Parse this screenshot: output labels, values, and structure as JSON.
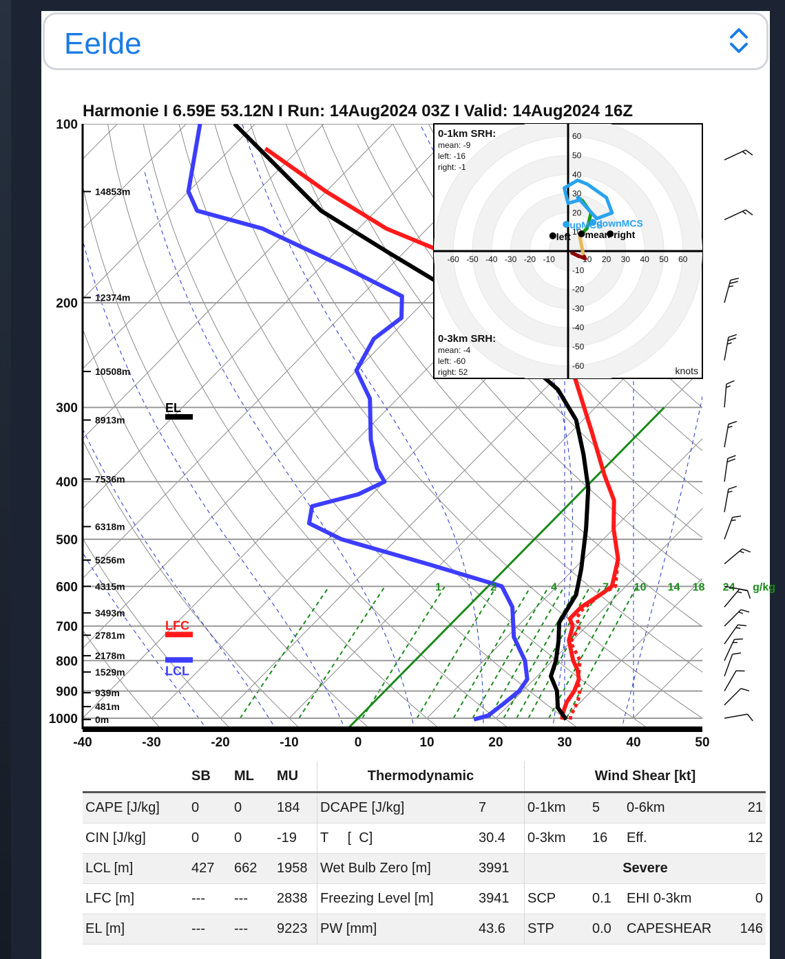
{
  "location": {
    "selected": "Eelde"
  },
  "colors": {
    "accent": "#1a7be6",
    "temperature": "#ff1a1a",
    "dewpoint": "#3d3dff",
    "parcel": "#000000",
    "wetbulb_zero": "#1a8a1a",
    "mixing_ratio": "#1a8a1a",
    "dry_adiabat": "#777777",
    "moist_adiabat": "#2233cc"
  },
  "chart_data": {
    "type": "skew-t",
    "title": "Harmonie I 6.59E 53.12N I Run: 14Aug2024 03Z I Valid: 14Aug2024 16Z",
    "x_ticks": [
      -40,
      -30,
      -20,
      -10,
      0,
      10,
      20,
      30,
      40,
      50
    ],
    "p_ticks": [
      100,
      200,
      300,
      400,
      500,
      600,
      700,
      800,
      900,
      1000
    ],
    "xlim": [
      -40,
      50
    ],
    "plim": [
      1000,
      100
    ],
    "y_scale": "log-pressure",
    "height_labels": [
      {
        "p": 130,
        "label": "14853m"
      },
      {
        "p": 196,
        "label": "12374m"
      },
      {
        "p": 261,
        "label": "10508m"
      },
      {
        "p": 315,
        "label": "8913m"
      },
      {
        "p": 396,
        "label": "7536m"
      },
      {
        "p": 476,
        "label": "6318m"
      },
      {
        "p": 542,
        "label": "5256m"
      },
      {
        "p": 600,
        "label": "4315m"
      },
      {
        "p": 665,
        "label": "3493m"
      },
      {
        "p": 725,
        "label": "2781m"
      },
      {
        "p": 785,
        "label": "2178m"
      },
      {
        "p": 836,
        "label": "1529m"
      },
      {
        "p": 906,
        "label": "939m"
      },
      {
        "p": 956,
        "label": "481m"
      },
      {
        "p": 1005,
        "label": "0m"
      }
    ],
    "mixing_ratio_labels": [
      {
        "value": "1",
        "t": -6
      },
      {
        "value": "2",
        "t": 2
      },
      {
        "value": "4",
        "t": 10.8
      },
      {
        "value": "7",
        "t": 18.3
      },
      {
        "value": "10",
        "t": 23.3
      },
      {
        "value": "14",
        "t": 28.2
      },
      {
        "value": "18",
        "t": 31.8
      },
      {
        "value": "24",
        "t": 36.2
      },
      {
        "value": "g/kg",
        "t": 41.3
      }
    ],
    "levels": [
      {
        "name": "EL",
        "p": 312,
        "t": -26
      },
      {
        "name": "LFC",
        "p": 725,
        "t": -26
      },
      {
        "name": "LCL",
        "p": 800,
        "t": -26
      }
    ],
    "series": [
      {
        "name": "temperature",
        "points": [
          [
            29.8,
            1005
          ],
          [
            29,
            980
          ],
          [
            28,
            940
          ],
          [
            27.5,
            900
          ],
          [
            26.5,
            860
          ],
          [
            25,
            830
          ],
          [
            23,
            800
          ],
          [
            19.5,
            740
          ],
          [
            18,
            700
          ],
          [
            16.5,
            680
          ],
          [
            16.5,
            650
          ],
          [
            17.5,
            620
          ],
          [
            18,
            600
          ],
          [
            15,
            540
          ],
          [
            10,
            480
          ],
          [
            6,
            430
          ],
          [
            1,
            390
          ],
          [
            -7,
            330
          ],
          [
            -15,
            280
          ],
          [
            -22.5,
            240
          ],
          [
            -34,
            210
          ],
          [
            -39,
            200
          ],
          [
            -50,
            170
          ],
          [
            -66,
            150
          ],
          [
            -80,
            130
          ],
          [
            -95,
            110
          ]
        ]
      },
      {
        "name": "dewpoint",
        "points": [
          [
            17,
            1005
          ],
          [
            18.5,
            990
          ],
          [
            19,
            950
          ],
          [
            19.5,
            900
          ],
          [
            19,
            860
          ],
          [
            16,
            800
          ],
          [
            11,
            730
          ],
          [
            6.5,
            650
          ],
          [
            2,
            600
          ],
          [
            -12,
            550
          ],
          [
            -28,
            500
          ],
          [
            -35,
            470
          ],
          [
            -37,
            440
          ],
          [
            -32,
            420
          ],
          [
            -30,
            400
          ],
          [
            -33,
            380
          ],
          [
            -38,
            340
          ],
          [
            -44,
            290
          ],
          [
            -50,
            260
          ],
          [
            -52,
            230
          ],
          [
            -51,
            212
          ],
          [
            -54,
            195
          ],
          [
            -66,
            175
          ],
          [
            -84,
            150
          ],
          [
            -96,
            140
          ],
          [
            -100,
            130
          ],
          [
            -108,
            100
          ]
        ]
      },
      {
        "name": "parcel",
        "points": [
          [
            30.4,
            1005
          ],
          [
            27.5,
            960
          ],
          [
            25,
            900
          ],
          [
            22,
            850
          ],
          [
            20.5,
            800
          ],
          [
            18,
            740
          ],
          [
            15.5,
            690
          ],
          [
            14,
            620
          ],
          [
            11,
            560
          ],
          [
            6,
            480
          ],
          [
            0.5,
            410
          ],
          [
            -5,
            360
          ],
          [
            -11,
            315
          ],
          [
            -18,
            280
          ],
          [
            -27,
            250
          ],
          [
            -37,
            215
          ],
          [
            -48,
            190
          ],
          [
            -62,
            165
          ],
          [
            -78,
            140
          ],
          [
            -103,
            100
          ]
        ]
      },
      {
        "name": "virtual-temperature",
        "dashed": true,
        "points": [
          [
            31,
            1005
          ],
          [
            30.5,
            990
          ],
          [
            30,
            960
          ],
          [
            29.3,
            930
          ],
          [
            28.3,
            900
          ],
          [
            27.3,
            880
          ],
          [
            26,
            850
          ],
          [
            24,
            800
          ],
          [
            20,
            745
          ],
          [
            19,
            700
          ],
          [
            17.5,
            680
          ],
          [
            17,
            660
          ],
          [
            17.5,
            620
          ],
          [
            18.5,
            600
          ],
          [
            15,
            540
          ]
        ]
      }
    ],
    "wetbulb_zero_line": [
      [
        13.9,
        600
      ],
      [
        17,
        1000
      ]
    ],
    "isotherm_dashed": [
      30,
      40
    ],
    "wind_barbs": [
      {
        "p": 115,
        "dir": 245,
        "kt": 15
      },
      {
        "p": 145,
        "dir": 245,
        "kt": 15
      },
      {
        "p": 200,
        "dir": 195,
        "kt": 25
      },
      {
        "p": 250,
        "dir": 190,
        "kt": 25
      },
      {
        "p": 300,
        "dir": 185,
        "kt": 15
      },
      {
        "p": 350,
        "dir": 190,
        "kt": 15
      },
      {
        "p": 400,
        "dir": 188,
        "kt": 20
      },
      {
        "p": 450,
        "dir": 190,
        "kt": 15
      },
      {
        "p": 500,
        "dir": 200,
        "kt": 15
      },
      {
        "p": 550,
        "dir": 230,
        "kt": 15
      },
      {
        "p": 600,
        "dir": 280,
        "kt": 10
      },
      {
        "p": 650,
        "dir": 220,
        "kt": 15
      },
      {
        "p": 700,
        "dir": 225,
        "kt": 15
      },
      {
        "p": 750,
        "dir": 215,
        "kt": 15
      },
      {
        "p": 800,
        "dir": 205,
        "kt": 15
      },
      {
        "p": 850,
        "dir": 200,
        "kt": 10
      },
      {
        "p": 900,
        "dir": 210,
        "kt": 10
      },
      {
        "p": 950,
        "dir": 225,
        "kt": 10
      },
      {
        "p": 1000,
        "dir": 260,
        "kt": 10
      }
    ],
    "hodograph": {
      "unit": "knots",
      "axis_ticks": [
        -60,
        -50,
        -40,
        -30,
        -20,
        -10,
        10,
        20,
        30,
        40,
        50,
        60
      ],
      "srh_0_1km": {
        "title": "0-1km SRH:",
        "mean": "mean: -9",
        "left": "left: -16",
        "right": "right: -1"
      },
      "srh_0_3km": {
        "title": "0-3km SRH:",
        "mean": "mean: -4",
        "left": "left: -60",
        "right": "right: 52"
      },
      "trace": [
        {
          "color": "#8b0000",
          "points": [
            [
              6,
              -3
            ],
            [
              2,
              -1
            ],
            [
              9,
              -4
            ],
            [
              8,
              -2
            ]
          ]
        },
        {
          "color": "#e6b85c",
          "points": [
            [
              8,
              -2
            ],
            [
              7,
              3
            ],
            [
              6,
              8
            ]
          ]
        },
        {
          "color": "#1a9a1a",
          "points": [
            [
              6,
              8
            ],
            [
              10,
              12
            ],
            [
              12,
              20
            ],
            [
              7,
              27
            ]
          ]
        },
        {
          "color": "#29a3ee",
          "points": [
            [
              7,
              27
            ],
            [
              5,
              28
            ],
            [
              15,
              17
            ],
            [
              23,
              20
            ],
            [
              20,
              28
            ],
            [
              10,
              35
            ],
            [
              5,
              37
            ],
            [
              -2,
              33
            ],
            [
              0,
              25
            ],
            [
              7,
              27
            ]
          ]
        }
      ],
      "markers": [
        {
          "label": "left",
          "u": -8,
          "v": 8,
          "color": "#000000"
        },
        {
          "label": "mean",
          "u": 7,
          "v": 9,
          "color": "#000000"
        },
        {
          "label": "right",
          "u": 22,
          "v": 9,
          "color": "#000000"
        },
        {
          "label": "upMCS",
          "u": -1,
          "v": 14,
          "color": "#29a3ee"
        },
        {
          "label": "downMCS",
          "u": 13,
          "v": 15,
          "color": "#29a3ee"
        }
      ]
    }
  },
  "stats": {
    "headers": {
      "sb": "SB",
      "ml": "ML",
      "mu": "MU",
      "thermo": "Thermodynamic",
      "shear": "Wind Shear [kt]"
    },
    "rows": [
      {
        "label": "CAPE [J/kg]",
        "sb": "0",
        "ml": "0",
        "mu": "184",
        "tlab": "DCAPE [J/kg]",
        "tval": "7",
        "s1lab": "0-1km",
        "s1val": "5",
        "s2lab": "0-6km",
        "s2val": "21"
      },
      {
        "label": "CIN [J/kg]",
        "sb": "0",
        "ml": "0",
        "mu": "-19",
        "tlab": "T     [  C]",
        "tval": "30.4",
        "s1lab": "0-3km",
        "s1val": "16",
        "s2lab": "Eff.",
        "s2val": "12"
      },
      {
        "label": "LCL [m]",
        "sb": "427",
        "ml": "662",
        "mu": "1958",
        "tlab": "Wet Bulb Zero [m]",
        "tval": "3991",
        "severe": "Severe"
      },
      {
        "label": "LFC [m]",
        "sb": "---",
        "ml": "---",
        "mu": "2838",
        "tlab": "Freezing Level [m]",
        "tval": "3941",
        "s1lab": "SCP",
        "s1val": "0.1",
        "s2lab": "EHI 0-3km",
        "s2val": "0"
      },
      {
        "label": "EL [m]",
        "sb": "---",
        "ml": "---",
        "mu": "9223",
        "tlab": "PW [mm]",
        "tval": "43.6",
        "s1lab": "STP",
        "s1val": "0.0",
        "s2lab": "CAPESHEAR",
        "s2val": "146"
      }
    ]
  }
}
